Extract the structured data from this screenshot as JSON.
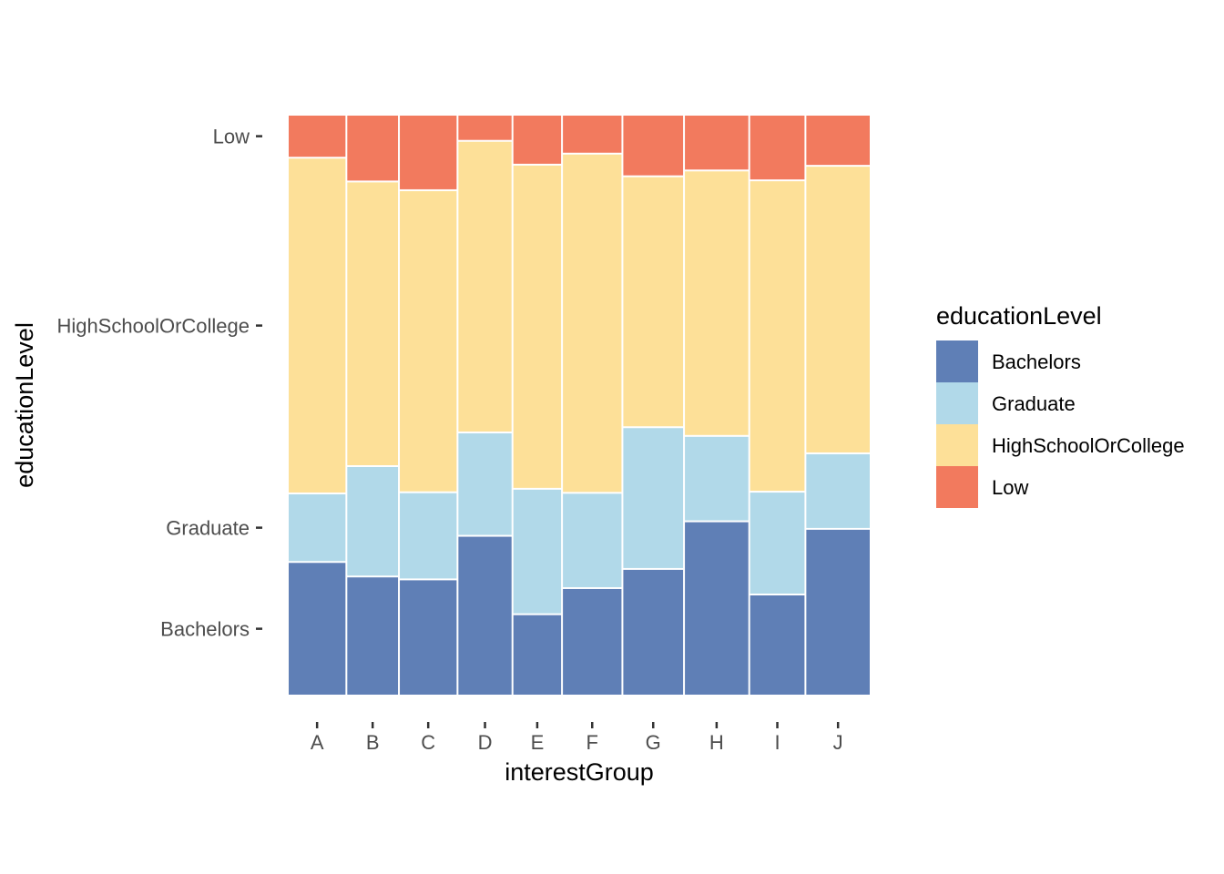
{
  "chart_data": {
    "type": "mosaic",
    "title": "",
    "xlabel": "interestGroup",
    "ylabel": "educationLevel",
    "categories": [
      "A",
      "B",
      "C",
      "D",
      "E",
      "F",
      "G",
      "H",
      "I",
      "J"
    ],
    "column_widths": [
      0.097,
      0.087,
      0.097,
      0.091,
      0.082,
      0.1,
      0.102,
      0.108,
      0.093,
      0.108
    ],
    "levels": [
      "Bachelors",
      "Graduate",
      "HighSchoolOrCollege",
      "Low"
    ],
    "y_tick_labels": [
      "Bachelors",
      "Graduate",
      "HighSchoolOrCollege",
      "Low"
    ],
    "series": [
      {
        "name": "Bachelors",
        "color": "#5F7FB6",
        "values": [
          0.23,
          0.205,
          0.2,
          0.275,
          0.14,
          0.185,
          0.218,
          0.3,
          0.174,
          0.287
        ]
      },
      {
        "name": "Graduate",
        "color": "#B1D9E9",
        "values": [
          0.118,
          0.19,
          0.15,
          0.178,
          0.216,
          0.164,
          0.244,
          0.147,
          0.177,
          0.13
        ]
      },
      {
        "name": "HighSchoolOrCollege",
        "color": "#FDE098",
        "values": [
          0.578,
          0.49,
          0.52,
          0.502,
          0.558,
          0.584,
          0.432,
          0.457,
          0.536,
          0.495
        ]
      },
      {
        "name": "Low",
        "color": "#F27A5E",
        "values": [
          0.074,
          0.115,
          0.13,
          0.045,
          0.086,
          0.067,
          0.106,
          0.096,
          0.113,
          0.088
        ]
      }
    ],
    "legend": {
      "title": "educationLevel",
      "position": "right"
    }
  }
}
